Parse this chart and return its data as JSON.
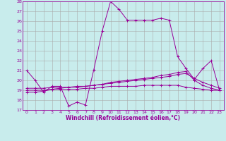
{
  "xlabel": "Windchill (Refroidissement éolien,°C)",
  "bg_color": "#c8ecec",
  "grid_color": "#aaaaaa",
  "line_color": "#990099",
  "xlim": [
    -0.5,
    23.5
  ],
  "ylim": [
    17,
    28
  ],
  "xticks": [
    0,
    1,
    2,
    3,
    4,
    5,
    6,
    7,
    8,
    9,
    10,
    11,
    12,
    13,
    14,
    15,
    16,
    17,
    18,
    19,
    20,
    21,
    22,
    23
  ],
  "yticks": [
    17,
    18,
    19,
    20,
    21,
    22,
    23,
    24,
    25,
    26,
    27,
    28
  ],
  "series1_x": [
    0,
    1,
    2,
    3,
    4,
    5,
    6,
    7,
    8,
    9,
    10,
    11,
    12,
    13,
    14,
    15,
    16,
    17,
    18,
    19,
    20,
    21,
    22,
    23
  ],
  "series1_y": [
    21.0,
    20.0,
    18.8,
    19.4,
    19.4,
    17.4,
    17.8,
    17.5,
    21.1,
    25.0,
    28.0,
    27.2,
    26.1,
    26.1,
    26.1,
    26.1,
    26.3,
    26.1,
    22.4,
    21.2,
    20.1,
    21.2,
    22.0,
    19.0
  ],
  "series2_x": [
    0,
    1,
    2,
    3,
    4,
    5,
    6,
    7,
    8,
    9,
    10,
    11,
    12,
    13,
    14,
    15,
    16,
    17,
    18,
    19,
    20,
    21,
    22,
    23
  ],
  "series2_y": [
    18.8,
    18.8,
    18.9,
    19.1,
    19.2,
    19.3,
    19.3,
    19.4,
    19.5,
    19.6,
    19.8,
    19.9,
    20.0,
    20.1,
    20.2,
    20.3,
    20.5,
    20.6,
    20.8,
    20.9,
    20.0,
    19.5,
    19.2,
    19.0
  ],
  "series3_x": [
    0,
    1,
    2,
    3,
    4,
    5,
    6,
    7,
    8,
    9,
    10,
    11,
    12,
    13,
    14,
    15,
    16,
    17,
    18,
    19,
    20,
    21,
    22,
    23
  ],
  "series3_y": [
    19.0,
    19.0,
    19.0,
    19.1,
    19.1,
    19.1,
    19.1,
    19.2,
    19.2,
    19.3,
    19.4,
    19.4,
    19.4,
    19.4,
    19.5,
    19.5,
    19.5,
    19.5,
    19.5,
    19.3,
    19.2,
    19.1,
    19.0,
    19.0
  ],
  "series4_x": [
    0,
    1,
    2,
    3,
    4,
    5,
    6,
    7,
    8,
    9,
    10,
    11,
    12,
    13,
    14,
    15,
    16,
    17,
    18,
    19,
    20,
    21,
    22,
    23
  ],
  "series4_y": [
    19.2,
    19.2,
    19.2,
    19.3,
    19.3,
    19.3,
    19.4,
    19.4,
    19.5,
    19.6,
    19.7,
    19.8,
    19.9,
    20.0,
    20.1,
    20.2,
    20.3,
    20.4,
    20.6,
    20.7,
    20.2,
    19.8,
    19.5,
    19.2
  ],
  "tick_fontsize": 4.5,
  "xlabel_fontsize": 5.5,
  "lw": 0.7,
  "marker_size": 3
}
